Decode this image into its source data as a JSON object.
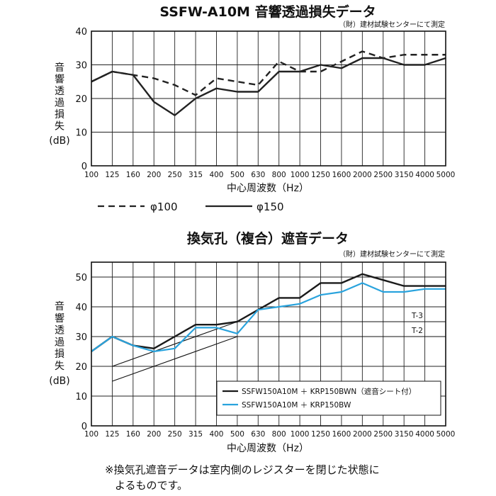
{
  "charts": [
    {
      "type": "line",
      "title": "SSFW-A10M 音響透過損失データ",
      "subtitle": "（財）建材試験センターにて測定",
      "xlabel": "中心周波数（Hz）",
      "ylabel_chars": [
        "音",
        "響",
        "透",
        "過",
        "損",
        "失",
        "(dB)"
      ],
      "categories": [
        "100",
        "125",
        "160",
        "200",
        "250",
        "315",
        "400",
        "500",
        "630",
        "800",
        "1000",
        "1250",
        "1600",
        "2000",
        "2500",
        "3150",
        "4000",
        "5000"
      ],
      "ylim": [
        0,
        40
      ],
      "yticks": [
        0,
        10,
        20,
        30,
        40
      ],
      "grid": true,
      "legend_position": "bottom",
      "series": [
        {
          "name": "φ100",
          "style": "dashed",
          "color": "#222222",
          "values": [
            25,
            28,
            27,
            26,
            24,
            21,
            26,
            25,
            24,
            31,
            28,
            28,
            31,
            34,
            32,
            33,
            33,
            33
          ]
        },
        {
          "name": "φ150",
          "style": "solid",
          "color": "#222222",
          "values": [
            25,
            28,
            27,
            19,
            15,
            20,
            23,
            22,
            22,
            28,
            28,
            30,
            29,
            32,
            32,
            30,
            30,
            32
          ]
        }
      ]
    },
    {
      "type": "line",
      "title": "換気孔（複合）遮音データ",
      "subtitle": "（財）建材試験センターにて測定",
      "xlabel": "中心周波数（Hz）",
      "ylabel_chars": [
        "音",
        "響",
        "透",
        "過",
        "損",
        "失",
        "(dB)"
      ],
      "categories": [
        "100",
        "125",
        "160",
        "200",
        "250",
        "315",
        "400",
        "500",
        "630",
        "800",
        "1000",
        "1250",
        "1600",
        "2000",
        "2500",
        "3150",
        "4000",
        "5000"
      ],
      "ylim": [
        0,
        55
      ],
      "yticks": [
        0,
        10,
        20,
        30,
        40,
        50
      ],
      "grid": true,
      "legend_position": "bottom-right",
      "series": [
        {
          "name": "SSFW150A10M ＋ KRP150BWN（遮音シート付）",
          "style": "solid",
          "color": "#1a1a1a",
          "values": [
            25,
            30,
            27,
            26,
            30,
            34,
            34,
            35,
            39,
            43,
            43,
            48,
            48,
            51,
            49,
            47,
            47,
            47
          ]
        },
        {
          "name": "SSFW150A10M ＋ KRP150BW",
          "style": "solid",
          "color": "#29a3dd",
          "values": [
            25,
            30,
            27,
            25,
            26,
            33,
            33,
            31,
            39,
            40,
            41,
            44,
            45,
            48,
            45,
            45,
            46,
            46
          ]
        }
      ],
      "reference_curves": [
        {
          "name": "T-3",
          "points": [
            [
              "125",
              20
            ],
            [
              "500",
              35
            ],
            [
              "5000",
              35
            ]
          ]
        },
        {
          "name": "T-2",
          "points": [
            [
              "125",
              15
            ],
            [
              "500",
              30
            ],
            [
              "5000",
              30
            ]
          ]
        }
      ]
    }
  ],
  "note_lines": [
    "※換気孔遮音データは室内側のレジスターを閉じた状態に",
    "よるものです。"
  ]
}
